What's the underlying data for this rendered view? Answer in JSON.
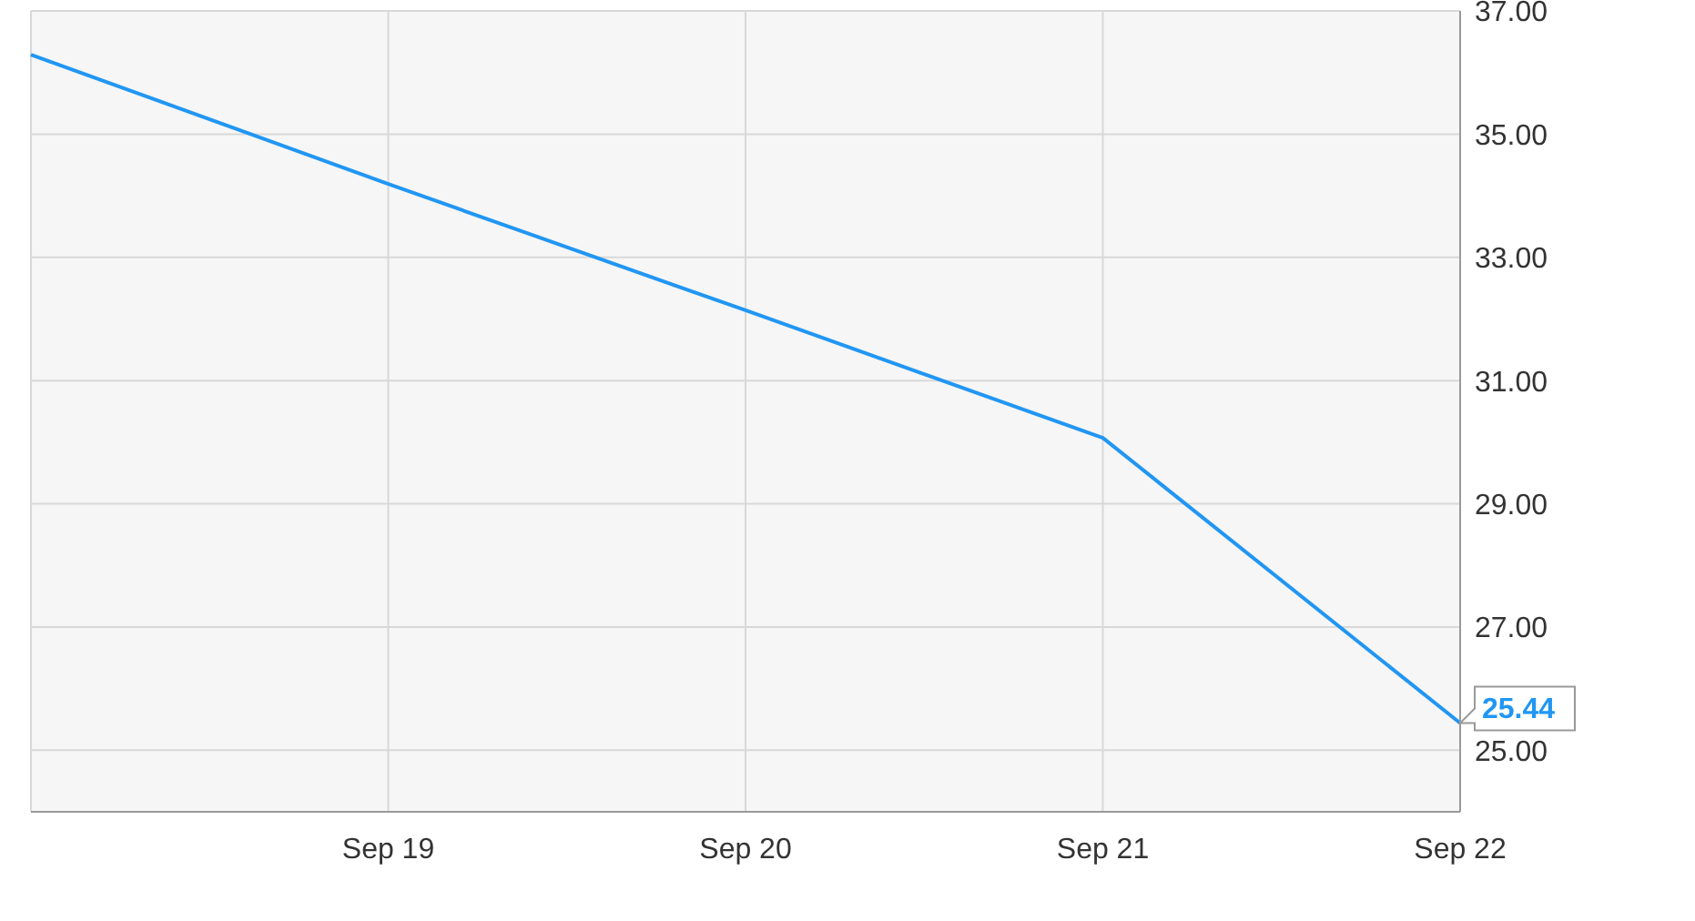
{
  "chart_data": {
    "type": "line",
    "categories": [
      null,
      "Sep 19",
      "Sep 20",
      "Sep 21",
      "Sep 22"
    ],
    "series": [
      {
        "color": "#2196f3",
        "values": [
          36.29,
          34.19,
          32.14,
          30.07,
          25.44
        ],
        "value_labels": [
          null,
          null,
          null,
          null,
          "25.44"
        ]
      }
    ],
    "ylim": [
      24,
      37
    ],
    "yticks": [
      {
        "value": 25,
        "label": "25.00"
      },
      {
        "value": 27,
        "label": "27.00"
      },
      {
        "value": 29,
        "label": "29.00"
      },
      {
        "value": 31,
        "label": "31.00"
      },
      {
        "value": 33,
        "label": "33.00"
      },
      {
        "value": 35,
        "label": "35.00"
      },
      {
        "value": 37,
        "label": "37.00"
      }
    ],
    "grid": true,
    "marker": "none"
  }
}
